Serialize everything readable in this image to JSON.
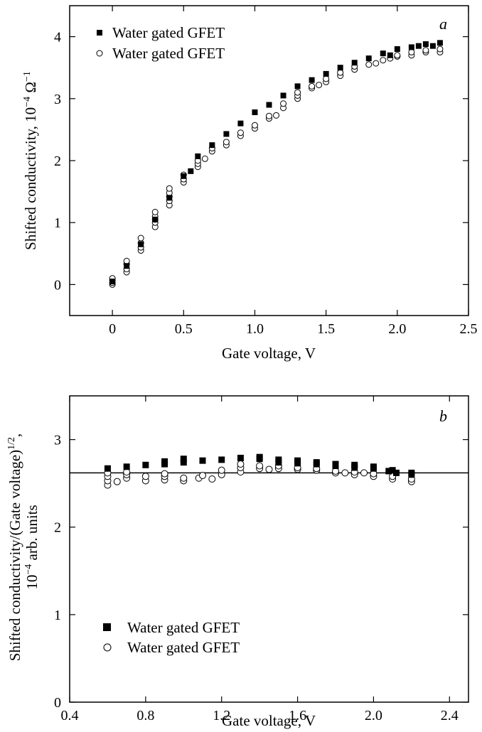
{
  "chart_data": [
    {
      "type": "scatter",
      "panel_label": "a",
      "xlabel": "Gate voltage, V",
      "ylabel": "Shifted conductivity, 10−4 Ω−1",
      "ylabel_main": "Shifted conductivity, 10",
      "ylabel_exp1": "−4",
      "ylabel_mid": " Ω",
      "ylabel_exp2": "−1",
      "xlim": [
        -0.3,
        2.5
      ],
      "ylim": [
        -0.5,
        4.5
      ],
      "x_ticks": [
        0,
        0.5,
        1.0,
        1.5,
        2.0,
        2.5
      ],
      "x_tick_labels": [
        "0",
        "0.5",
        "1.0",
        "1.5",
        "2.0",
        "2.5"
      ],
      "y_ticks": [
        0,
        1,
        2,
        3,
        4
      ],
      "y_tick_labels": [
        "0",
        "1",
        "2",
        "3",
        "4"
      ],
      "legend_position": "top-left",
      "series": [
        {
          "name": "Water gated GFET",
          "marker": "filled-square",
          "points": [
            [
              0,
              0.05
            ],
            [
              0.1,
              0.3
            ],
            [
              0.2,
              0.65
            ],
            [
              0.3,
              1.05
            ],
            [
              0.4,
              1.4
            ],
            [
              0.5,
              1.75
            ],
            [
              0.55,
              1.83
            ],
            [
              0.6,
              2.07
            ],
            [
              0.7,
              2.25
            ],
            [
              0.8,
              2.43
            ],
            [
              0.9,
              2.6
            ],
            [
              1.0,
              2.78
            ],
            [
              1.1,
              2.9
            ],
            [
              1.2,
              3.05
            ],
            [
              1.3,
              3.2
            ],
            [
              1.4,
              3.3
            ],
            [
              1.5,
              3.4
            ],
            [
              1.6,
              3.5
            ],
            [
              1.7,
              3.58
            ],
            [
              1.8,
              3.65
            ],
            [
              1.9,
              3.73
            ],
            [
              1.95,
              3.7
            ],
            [
              2.0,
              3.8
            ],
            [
              2.1,
              3.83
            ],
            [
              2.15,
              3.85
            ],
            [
              2.2,
              3.88
            ],
            [
              2.25,
              3.85
            ],
            [
              2.3,
              3.9
            ]
          ]
        },
        {
          "name": "Water gated GFET",
          "marker": "open-circle",
          "points": [
            [
              0,
              0.0
            ],
            [
              0,
              0.03
            ],
            [
              0,
              0.07
            ],
            [
              0,
              0.1
            ],
            [
              0.1,
              0.2
            ],
            [
              0.1,
              0.25
            ],
            [
              0.1,
              0.33
            ],
            [
              0.1,
              0.38
            ],
            [
              0.2,
              0.55
            ],
            [
              0.2,
              0.6
            ],
            [
              0.2,
              0.67
            ],
            [
              0.2,
              0.75
            ],
            [
              0.3,
              0.93
            ],
            [
              0.3,
              1.0
            ],
            [
              0.3,
              1.05
            ],
            [
              0.3,
              1.1
            ],
            [
              0.3,
              1.17
            ],
            [
              0.4,
              1.28
            ],
            [
              0.4,
              1.35
            ],
            [
              0.4,
              1.42
            ],
            [
              0.4,
              1.48
            ],
            [
              0.4,
              1.55
            ],
            [
              0.5,
              1.65
            ],
            [
              0.5,
              1.7
            ],
            [
              0.5,
              1.77
            ],
            [
              0.6,
              1.9
            ],
            [
              0.6,
              1.95
            ],
            [
              0.6,
              2.0
            ],
            [
              0.65,
              2.03
            ],
            [
              0.7,
              2.15
            ],
            [
              0.7,
              2.2
            ],
            [
              0.8,
              2.25
            ],
            [
              0.8,
              2.3
            ],
            [
              0.9,
              2.4
            ],
            [
              0.9,
              2.45
            ],
            [
              1.0,
              2.52
            ],
            [
              1.0,
              2.57
            ],
            [
              1.1,
              2.68
            ],
            [
              1.1,
              2.72
            ],
            [
              1.15,
              2.73
            ],
            [
              1.2,
              2.85
            ],
            [
              1.2,
              2.92
            ],
            [
              1.3,
              3.0
            ],
            [
              1.3,
              3.05
            ],
            [
              1.3,
              3.1
            ],
            [
              1.4,
              3.17
            ],
            [
              1.4,
              3.2
            ],
            [
              1.45,
              3.22
            ],
            [
              1.5,
              3.27
            ],
            [
              1.5,
              3.32
            ],
            [
              1.6,
              3.37
            ],
            [
              1.6,
              3.42
            ],
            [
              1.7,
              3.47
            ],
            [
              1.7,
              3.52
            ],
            [
              1.8,
              3.55
            ],
            [
              1.85,
              3.57
            ],
            [
              1.9,
              3.62
            ],
            [
              1.95,
              3.65
            ],
            [
              2.0,
              3.68
            ],
            [
              2.0,
              3.7
            ],
            [
              2.1,
              3.7
            ],
            [
              2.1,
              3.75
            ],
            [
              2.2,
              3.75
            ],
            [
              2.2,
              3.78
            ],
            [
              2.3,
              3.75
            ],
            [
              2.3,
              3.8
            ]
          ]
        }
      ]
    },
    {
      "type": "scatter",
      "panel_label": "b",
      "xlabel": "Gate voltage, V",
      "ylabel": "Shifted conductivity/(Gate voltage)1/2, 10−4 arb. units",
      "ylabel_line1_main": "Shifted conductivity/(Gate voltage)",
      "ylabel_line1_exp": "1/2",
      "ylabel_line1_tail": ",",
      "ylabel_line2_main": "10",
      "ylabel_line2_exp": "−4",
      "ylabel_line2_tail": " arb. units",
      "xlim": [
        0.4,
        2.5
      ],
      "ylim": [
        0,
        3.5
      ],
      "x_ticks": [
        0.4,
        0.8,
        1.2,
        1.6,
        2.0,
        2.4
      ],
      "x_tick_labels": [
        "0.4",
        "0.8",
        "1.2",
        "1.6",
        "2.0",
        "2.4"
      ],
      "y_ticks": [
        0,
        1,
        2,
        3
      ],
      "y_tick_labels": [
        "0",
        "1",
        "2",
        "3"
      ],
      "reference_line_y": 2.62,
      "legend_position": "bottom-left",
      "series": [
        {
          "name": "Water gated GFET",
          "marker": "filled-square",
          "points": [
            [
              0.6,
              2.67
            ],
            [
              0.7,
              2.69
            ],
            [
              0.8,
              2.71
            ],
            [
              0.9,
              2.72
            ],
            [
              0.9,
              2.75
            ],
            [
              1.0,
              2.74
            ],
            [
              1.0,
              2.78
            ],
            [
              1.1,
              2.76
            ],
            [
              1.2,
              2.77
            ],
            [
              1.3,
              2.79
            ],
            [
              1.4,
              2.78
            ],
            [
              1.4,
              2.8
            ],
            [
              1.5,
              2.74
            ],
            [
              1.5,
              2.77
            ],
            [
              1.6,
              2.73
            ],
            [
              1.6,
              2.76
            ],
            [
              1.7,
              2.72
            ],
            [
              1.7,
              2.74
            ],
            [
              1.8,
              2.7
            ],
            [
              1.8,
              2.72
            ],
            [
              1.9,
              2.68
            ],
            [
              1.9,
              2.71
            ],
            [
              2.0,
              2.67
            ],
            [
              2.0,
              2.69
            ],
            [
              2.08,
              2.64
            ],
            [
              2.1,
              2.65
            ],
            [
              2.12,
              2.62
            ],
            [
              2.2,
              2.6
            ],
            [
              2.2,
              2.62
            ]
          ]
        },
        {
          "name": "Water gated GFET",
          "marker": "open-circle",
          "points": [
            [
              0.6,
              2.48
            ],
            [
              0.6,
              2.53
            ],
            [
              0.6,
              2.58
            ],
            [
              0.6,
              2.62
            ],
            [
              0.65,
              2.52
            ],
            [
              0.7,
              2.56
            ],
            [
              0.7,
              2.6
            ],
            [
              0.7,
              2.63
            ],
            [
              0.8,
              2.53
            ],
            [
              0.8,
              2.58
            ],
            [
              0.9,
              2.54
            ],
            [
              0.9,
              2.58
            ],
            [
              0.9,
              2.61
            ],
            [
              1.0,
              2.53
            ],
            [
              1.0,
              2.56
            ],
            [
              1.08,
              2.56
            ],
            [
              1.1,
              2.59
            ],
            [
              1.15,
              2.55
            ],
            [
              1.2,
              2.6
            ],
            [
              1.2,
              2.65
            ],
            [
              1.3,
              2.63
            ],
            [
              1.3,
              2.68
            ],
            [
              1.3,
              2.72
            ],
            [
              1.4,
              2.67
            ],
            [
              1.4,
              2.7
            ],
            [
              1.45,
              2.66
            ],
            [
              1.5,
              2.67
            ],
            [
              1.5,
              2.7
            ],
            [
              1.6,
              2.66
            ],
            [
              1.6,
              2.68
            ],
            [
              1.7,
              2.65
            ],
            [
              1.7,
              2.67
            ],
            [
              1.8,
              2.62
            ],
            [
              1.8,
              2.64
            ],
            [
              1.85,
              2.62
            ],
            [
              1.9,
              2.6
            ],
            [
              1.9,
              2.63
            ],
            [
              1.95,
              2.62
            ],
            [
              2.0,
              2.58
            ],
            [
              2.0,
              2.61
            ],
            [
              2.1,
              2.55
            ],
            [
              2.1,
              2.58
            ],
            [
              2.2,
              2.52
            ],
            [
              2.2,
              2.55
            ]
          ]
        }
      ]
    }
  ]
}
